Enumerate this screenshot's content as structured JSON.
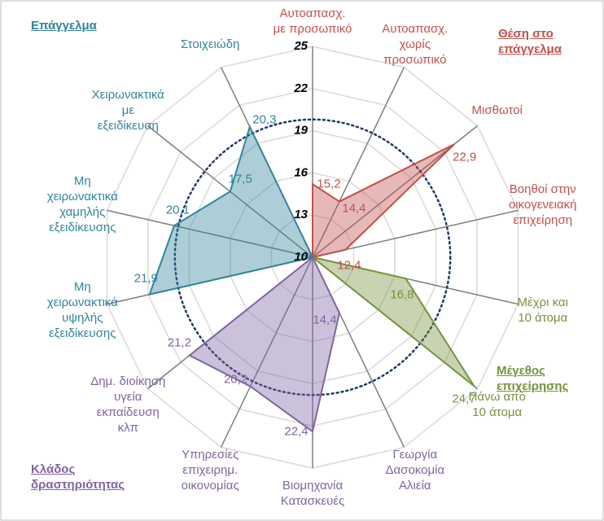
{
  "chart_data": {
    "type": "radar",
    "categories": [
      "Αυτοαπασχ.\nμε προσωπικό",
      "Αυτοαπασχ.\nχωρίς\nπροσωπικό",
      "Μισθωτοί",
      "Βοηθοί στην\nοικογενειακή\nεπιχείρηση",
      "Μέχρι και\n10 άτομα",
      "Πάνω από\n10 άτομα",
      "Γεωργία\nΔασοκομία\nΑλιεία",
      "Βιομηχανία\nΚατασκευές",
      "Υπηρεσίες\nεπιχειρημ.\nοικονομίας",
      "Δημ. διοίκηση\nυγεία\nεκπαίδευση\nκλπ",
      "Μη\nχειρωνακτικά\nυψηλής\nεξειδίκευσης",
      "Μη\nχειρωνακτικά\nχαμηλής\nεξειδίκευσης",
      "Χειρωνακτικά\nμε\nεξειδίκευση",
      "Στοιχειώδη"
    ],
    "series": [
      {
        "name": "Θέση στο\nεπάγγελμα",
        "color": "#c0504d",
        "values": [
          15.2,
          14.4,
          22.9,
          12.4,
          null,
          null,
          null,
          null,
          null,
          null,
          null,
          null,
          null,
          null
        ],
        "value_labels": [
          "15,2",
          "14,4",
          "22,9",
          "12,4",
          null,
          null,
          null,
          null,
          null,
          null,
          null,
          null,
          null,
          null
        ]
      },
      {
        "name": "Μέγεθος\nεπιχείρησης",
        "color": "#76923c",
        "values": [
          null,
          null,
          null,
          null,
          16.8,
          24.7,
          null,
          null,
          null,
          null,
          null,
          null,
          null,
          null
        ],
        "value_labels": [
          null,
          null,
          null,
          null,
          "16,8",
          "24,7",
          null,
          null,
          null,
          null,
          null,
          null,
          null,
          null
        ]
      },
      {
        "name": "Κλάδος\nδραστηριότητας",
        "color": "#8064a2",
        "values": [
          null,
          null,
          null,
          null,
          null,
          null,
          14.4,
          22.4,
          20.2,
          21.2,
          null,
          null,
          null,
          null
        ],
        "value_labels": [
          null,
          null,
          null,
          null,
          null,
          null,
          "14,4",
          "22,4",
          "20,2",
          "21,2",
          null,
          null,
          null,
          null
        ]
      },
      {
        "name": "Επάγγελμα",
        "color": "#31849b",
        "values": [
          null,
          null,
          null,
          null,
          null,
          null,
          null,
          null,
          null,
          null,
          21.9,
          20.1,
          17.5,
          20.3
        ],
        "value_labels": [
          null,
          null,
          null,
          null,
          null,
          null,
          null,
          null,
          null,
          null,
          "21,9",
          "20,1",
          "17,5",
          "20,3"
        ]
      }
    ],
    "rlim": [
      10,
      25
    ],
    "rticks": [
      10,
      13,
      16,
      19,
      22,
      25
    ],
    "reference_circle": 19.8,
    "reference_color": "#1f3864",
    "grid": true
  }
}
